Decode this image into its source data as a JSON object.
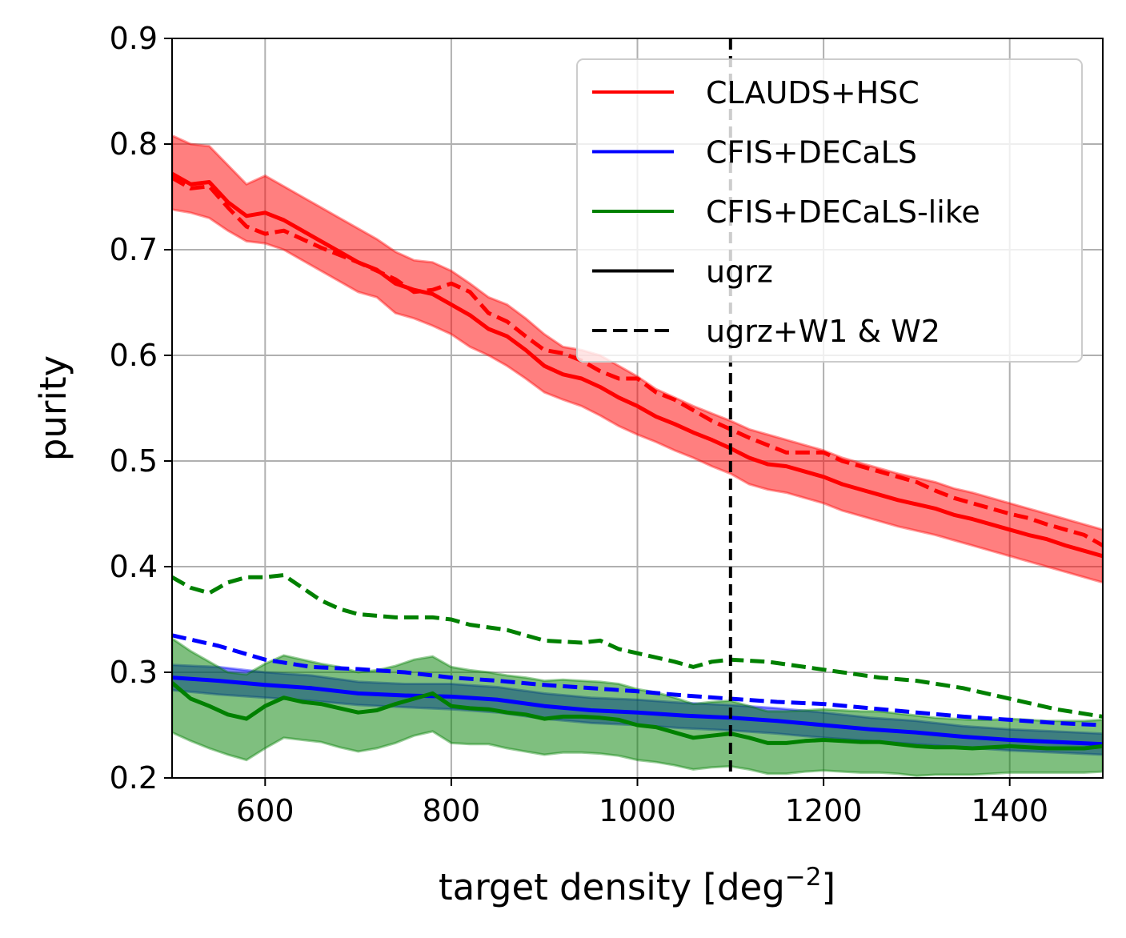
{
  "chart_data": {
    "type": "line",
    "title": "",
    "xlabel": "target density [deg",
    "xlabel_sup": "−2",
    "xlabel_end": "]",
    "ylabel": "purity",
    "xlim": [
      500,
      1500
    ],
    "ylim": [
      0.2,
      0.9
    ],
    "xticks": [
      600,
      800,
      1000,
      1200,
      1400
    ],
    "yticks": [
      0.2,
      0.3,
      0.4,
      0.5,
      0.6,
      0.7,
      0.8,
      0.9
    ],
    "grid": true,
    "vline": {
      "x": 1100,
      "style": "dashed",
      "color": "#000000"
    },
    "legend": {
      "position": "top-right",
      "entries": [
        {
          "label": "CLAUDS+HSC",
          "color": "#ff0000",
          "style": "solid"
        },
        {
          "label": "CFIS+DECaLS",
          "color": "#0000ff",
          "style": "solid"
        },
        {
          "label": "CFIS+DECaLS-like",
          "color": "#008000",
          "style": "solid"
        },
        {
          "label": "ugrz",
          "color": "#000000",
          "style": "solid"
        },
        {
          "label": "ugrz+W1 & W2",
          "color": "#000000",
          "style": "dashed"
        }
      ]
    },
    "series": [
      {
        "name": "CLAUDS+HSC ugrz",
        "color": "#ff0000",
        "style": "solid",
        "x": [
          500,
          520,
          540,
          560,
          580,
          600,
          620,
          640,
          660,
          680,
          700,
          720,
          740,
          760,
          780,
          800,
          820,
          840,
          860,
          880,
          900,
          920,
          940,
          960,
          980,
          1000,
          1020,
          1040,
          1060,
          1080,
          1100,
          1120,
          1140,
          1160,
          1180,
          1200,
          1220,
          1240,
          1260,
          1280,
          1300,
          1320,
          1340,
          1360,
          1380,
          1400,
          1420,
          1440,
          1460,
          1480,
          1500
        ],
        "y": [
          0.772,
          0.762,
          0.764,
          0.745,
          0.732,
          0.735,
          0.728,
          0.718,
          0.708,
          0.698,
          0.688,
          0.681,
          0.668,
          0.662,
          0.658,
          0.648,
          0.638,
          0.625,
          0.618,
          0.605,
          0.59,
          0.582,
          0.578,
          0.57,
          0.56,
          0.552,
          0.542,
          0.535,
          0.527,
          0.52,
          0.512,
          0.503,
          0.497,
          0.495,
          0.49,
          0.485,
          0.478,
          0.473,
          0.468,
          0.463,
          0.459,
          0.455,
          0.449,
          0.445,
          0.44,
          0.435,
          0.43,
          0.426,
          0.42,
          0.415,
          0.41
        ],
        "band_lower": [
          0.738,
          0.735,
          0.73,
          0.718,
          0.708,
          0.706,
          0.7,
          0.69,
          0.68,
          0.67,
          0.66,
          0.655,
          0.64,
          0.635,
          0.628,
          0.62,
          0.608,
          0.6,
          0.59,
          0.578,
          0.565,
          0.558,
          0.552,
          0.543,
          0.533,
          0.525,
          0.518,
          0.51,
          0.503,
          0.495,
          0.488,
          0.478,
          0.473,
          0.47,
          0.465,
          0.46,
          0.453,
          0.448,
          0.443,
          0.438,
          0.434,
          0.43,
          0.425,
          0.42,
          0.415,
          0.41,
          0.405,
          0.4,
          0.395,
          0.39,
          0.385
        ],
        "band_upper": [
          0.808,
          0.8,
          0.798,
          0.78,
          0.762,
          0.77,
          0.76,
          0.75,
          0.74,
          0.73,
          0.72,
          0.71,
          0.698,
          0.69,
          0.688,
          0.68,
          0.668,
          0.655,
          0.648,
          0.635,
          0.62,
          0.608,
          0.605,
          0.6,
          0.59,
          0.58,
          0.568,
          0.56,
          0.552,
          0.545,
          0.538,
          0.53,
          0.525,
          0.52,
          0.515,
          0.51,
          0.503,
          0.498,
          0.493,
          0.488,
          0.484,
          0.48,
          0.474,
          0.47,
          0.465,
          0.46,
          0.455,
          0.45,
          0.445,
          0.44,
          0.435
        ]
      },
      {
        "name": "CLAUDS+HSC ugrz+W1 & W2",
        "color": "#ff0000",
        "style": "dashed",
        "x": [
          500,
          520,
          540,
          560,
          580,
          600,
          620,
          640,
          660,
          680,
          700,
          720,
          740,
          760,
          780,
          800,
          820,
          840,
          860,
          880,
          900,
          920,
          940,
          960,
          980,
          1000,
          1020,
          1040,
          1060,
          1080,
          1100,
          1120,
          1140,
          1160,
          1180,
          1200,
          1220,
          1240,
          1260,
          1280,
          1300,
          1320,
          1340,
          1360,
          1380,
          1400,
          1420,
          1440,
          1460,
          1480,
          1500
        ],
        "y": [
          0.768,
          0.758,
          0.76,
          0.74,
          0.722,
          0.715,
          0.718,
          0.71,
          0.702,
          0.695,
          0.688,
          0.68,
          0.672,
          0.66,
          0.662,
          0.668,
          0.66,
          0.64,
          0.632,
          0.618,
          0.605,
          0.602,
          0.595,
          0.585,
          0.578,
          0.578,
          0.565,
          0.558,
          0.548,
          0.538,
          0.53,
          0.522,
          0.515,
          0.508,
          0.508,
          0.508,
          0.5,
          0.495,
          0.49,
          0.485,
          0.48,
          0.472,
          0.465,
          0.46,
          0.455,
          0.45,
          0.446,
          0.44,
          0.435,
          0.43,
          0.42
        ]
      },
      {
        "name": "CFIS+DECaLS ugrz",
        "color": "#0000ff",
        "style": "solid",
        "x": [
          500,
          550,
          600,
          650,
          700,
          750,
          800,
          850,
          900,
          950,
          1000,
          1050,
          1100,
          1150,
          1200,
          1250,
          1300,
          1350,
          1400,
          1450,
          1500
        ],
        "y": [
          0.295,
          0.292,
          0.288,
          0.285,
          0.28,
          0.278,
          0.277,
          0.274,
          0.268,
          0.264,
          0.262,
          0.259,
          0.257,
          0.254,
          0.25,
          0.246,
          0.243,
          0.239,
          0.236,
          0.234,
          0.232
        ],
        "band_lower": [
          0.283,
          0.279,
          0.276,
          0.273,
          0.269,
          0.267,
          0.265,
          0.262,
          0.256,
          0.252,
          0.25,
          0.247,
          0.245,
          0.242,
          0.238,
          0.235,
          0.232,
          0.229,
          0.226,
          0.224,
          0.222
        ],
        "band_upper": [
          0.307,
          0.305,
          0.3,
          0.297,
          0.291,
          0.289,
          0.289,
          0.286,
          0.28,
          0.276,
          0.274,
          0.271,
          0.269,
          0.266,
          0.262,
          0.257,
          0.254,
          0.249,
          0.246,
          0.244,
          0.242
        ]
      },
      {
        "name": "CFIS+DECaLS ugrz+W1 & W2",
        "color": "#0000ff",
        "style": "dashed",
        "x": [
          500,
          550,
          600,
          650,
          700,
          750,
          800,
          850,
          900,
          950,
          1000,
          1050,
          1100,
          1150,
          1200,
          1250,
          1300,
          1350,
          1400,
          1450,
          1500
        ],
        "y": [
          0.335,
          0.325,
          0.312,
          0.305,
          0.303,
          0.3,
          0.295,
          0.292,
          0.288,
          0.285,
          0.282,
          0.278,
          0.275,
          0.272,
          0.27,
          0.266,
          0.262,
          0.258,
          0.255,
          0.252,
          0.25
        ]
      },
      {
        "name": "CFIS+DECaLS-like ugrz",
        "color": "#008000",
        "style": "solid",
        "x": [
          500,
          520,
          540,
          560,
          580,
          600,
          620,
          640,
          660,
          680,
          700,
          720,
          740,
          760,
          780,
          800,
          820,
          840,
          860,
          880,
          900,
          920,
          940,
          960,
          980,
          1000,
          1020,
          1040,
          1060,
          1080,
          1100,
          1120,
          1140,
          1160,
          1180,
          1200,
          1220,
          1240,
          1260,
          1280,
          1300,
          1320,
          1340,
          1360,
          1380,
          1400,
          1420,
          1440,
          1460,
          1480,
          1500
        ],
        "y": [
          0.29,
          0.275,
          0.268,
          0.26,
          0.256,
          0.268,
          0.276,
          0.272,
          0.27,
          0.266,
          0.262,
          0.264,
          0.27,
          0.275,
          0.28,
          0.268,
          0.266,
          0.265,
          0.262,
          0.26,
          0.256,
          0.258,
          0.258,
          0.257,
          0.255,
          0.25,
          0.248,
          0.243,
          0.238,
          0.24,
          0.242,
          0.238,
          0.233,
          0.233,
          0.235,
          0.236,
          0.235,
          0.234,
          0.234,
          0.232,
          0.23,
          0.229,
          0.229,
          0.228,
          0.229,
          0.23,
          0.229,
          0.228,
          0.228,
          0.228,
          0.23
        ],
        "band_lower": [
          0.243,
          0.235,
          0.228,
          0.222,
          0.217,
          0.228,
          0.238,
          0.236,
          0.234,
          0.229,
          0.225,
          0.228,
          0.233,
          0.24,
          0.244,
          0.233,
          0.232,
          0.232,
          0.228,
          0.225,
          0.222,
          0.224,
          0.224,
          0.223,
          0.221,
          0.217,
          0.215,
          0.212,
          0.208,
          0.21,
          0.211,
          0.208,
          0.204,
          0.204,
          0.206,
          0.207,
          0.206,
          0.205,
          0.205,
          0.204,
          0.202,
          0.203,
          0.203,
          0.203,
          0.204,
          0.205,
          0.205,
          0.205,
          0.205,
          0.205,
          0.206
        ],
        "band_upper": [
          0.332,
          0.32,
          0.31,
          0.3,
          0.298,
          0.308,
          0.316,
          0.312,
          0.308,
          0.305,
          0.3,
          0.302,
          0.306,
          0.312,
          0.315,
          0.305,
          0.302,
          0.3,
          0.297,
          0.295,
          0.292,
          0.293,
          0.292,
          0.291,
          0.289,
          0.284,
          0.281,
          0.276,
          0.27,
          0.272,
          0.273,
          0.268,
          0.263,
          0.263,
          0.264,
          0.265,
          0.264,
          0.263,
          0.263,
          0.261,
          0.259,
          0.257,
          0.256,
          0.255,
          0.255,
          0.256,
          0.255,
          0.254,
          0.254,
          0.254,
          0.255
        ]
      },
      {
        "name": "CFIS+DECaLS-like ugrz+W1 & W2",
        "color": "#008000",
        "style": "dashed",
        "x": [
          500,
          520,
          540,
          560,
          580,
          600,
          620,
          640,
          660,
          680,
          700,
          740,
          780,
          800,
          820,
          860,
          900,
          940,
          960,
          980,
          1000,
          1040,
          1060,
          1080,
          1100,
          1140,
          1180,
          1220,
          1260,
          1300,
          1350,
          1400,
          1450,
          1500
        ],
        "y": [
          0.39,
          0.38,
          0.375,
          0.385,
          0.39,
          0.39,
          0.392,
          0.38,
          0.368,
          0.36,
          0.355,
          0.352,
          0.352,
          0.35,
          0.345,
          0.34,
          0.33,
          0.328,
          0.33,
          0.322,
          0.318,
          0.31,
          0.305,
          0.31,
          0.312,
          0.31,
          0.305,
          0.3,
          0.295,
          0.292,
          0.285,
          0.275,
          0.265,
          0.258
        ]
      }
    ]
  }
}
